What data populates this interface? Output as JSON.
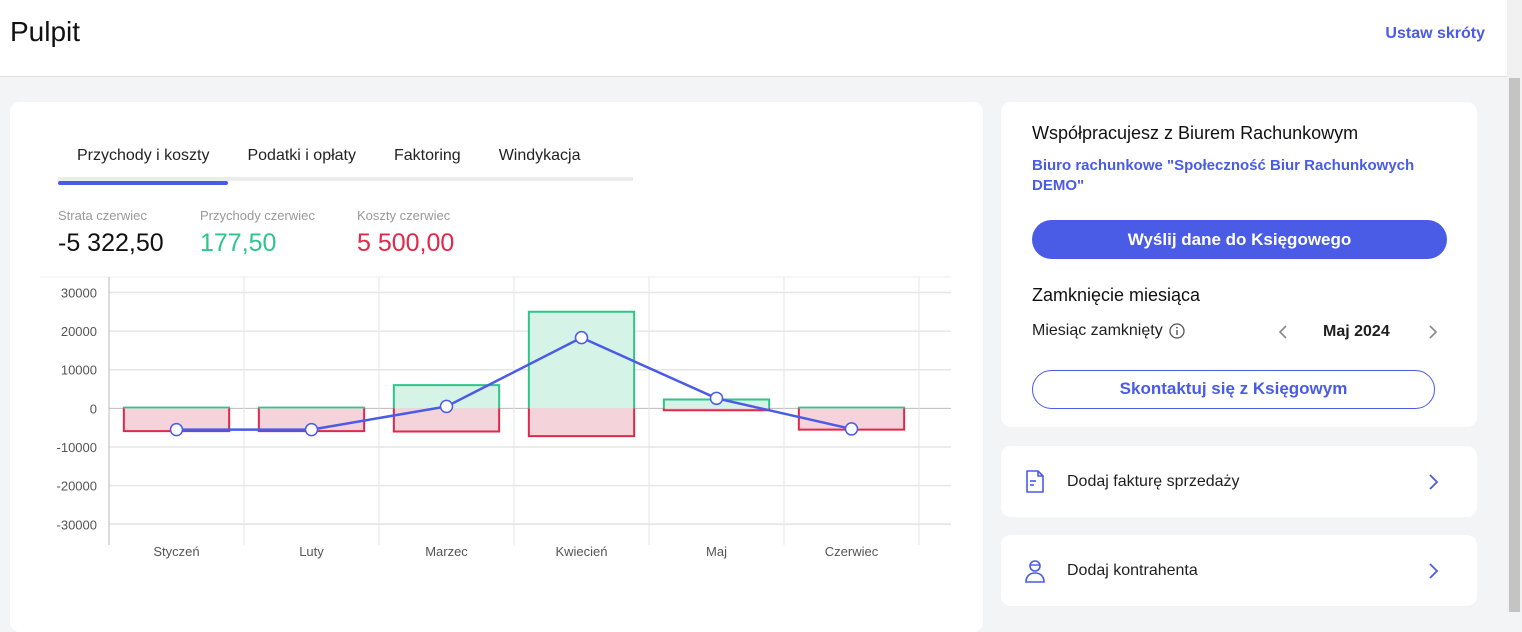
{
  "header": {
    "title": "Pulpit",
    "shortcuts_label": "Ustaw skróty"
  },
  "tabs": [
    {
      "label": "Przychody i koszty",
      "active": true
    },
    {
      "label": "Podatki i opłaty"
    },
    {
      "label": "Faktoring"
    },
    {
      "label": "Windykacja"
    }
  ],
  "stats": [
    {
      "label": "Strata czerwiec",
      "value": "-5 322,50",
      "color": "#111111"
    },
    {
      "label": "Przychody czerwiec",
      "value": "177,50",
      "color": "#2ec58b"
    },
    {
      "label": "Koszty czerwiec",
      "value": "5 500,00",
      "color": "#e0284a"
    }
  ],
  "chart_data": {
    "type": "bar",
    "categories": [
      "Styczeń",
      "Luty",
      "Marzec",
      "Kwiecień",
      "Maj",
      "Czerwiec"
    ],
    "yticks": [
      30000,
      20000,
      10000,
      0,
      -10000,
      -20000,
      -30000
    ],
    "ylim": [
      -32000,
      34000
    ],
    "grid": true,
    "series": [
      {
        "kind": "bar",
        "values": [
          200,
          200,
          6000,
          25000,
          2300,
          177.5
        ],
        "color": "#2ec58b",
        "fill": "#d5f3e6"
      },
      {
        "kind": "bar",
        "values": [
          -5900,
          -5900,
          -6000,
          -7200,
          -500,
          -5500
        ],
        "color": "#e0284a",
        "fill": "#f5d3da"
      },
      {
        "kind": "line",
        "values": [
          -5500,
          -5500,
          500,
          18300,
          2600,
          -5322.5
        ],
        "color": "#4a5be6"
      }
    ]
  },
  "accounting": {
    "heading": "Współpracujesz z Biurem Rachunkowym",
    "office_name": "Biuro rachunkowe \"Społeczność Biur Rachunkowych DEMO\"",
    "send_button": "Wyślij dane do Księgowego",
    "closing_heading": "Zamknięcie miesiąca",
    "closed_label": "Miesiąc zamknięty",
    "month": "Maj 2024",
    "contact_button": "Skontaktuj się z Księgowym"
  },
  "actions": [
    {
      "label": "Dodaj fakturę sprzedaży",
      "icon": "document-icon"
    },
    {
      "label": "Dodaj kontrahenta",
      "icon": "user-icon"
    }
  ]
}
